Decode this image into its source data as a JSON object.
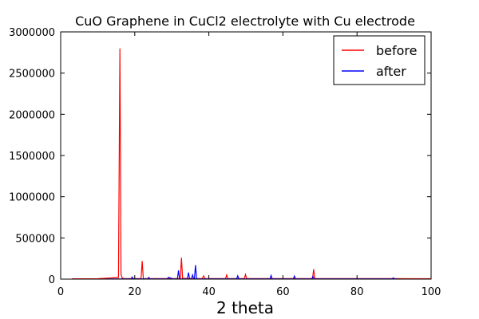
{
  "chart_data": {
    "type": "line",
    "title": "CuO Graphene in CuCl2 electrolyte with Cu electrode",
    "xlabel": "2 theta",
    "ylabel": "",
    "xlim": [
      0,
      100
    ],
    "ylim": [
      0,
      3000000
    ],
    "xticks": [
      "0",
      "20",
      "40",
      "60",
      "80",
      "100"
    ],
    "yticks": [
      "0",
      "500000",
      "1000000",
      "1500000",
      "2000000",
      "2500000",
      "3000000"
    ],
    "xtick_values": [
      0,
      20,
      40,
      60,
      80,
      100
    ],
    "ytick_values": [
      0,
      500000,
      1000000,
      1500000,
      2000000,
      2500000,
      3000000
    ],
    "grid": false,
    "legend_position": "top-right",
    "series": [
      {
        "name": "before",
        "color": "#ff0000",
        "x": [
          3,
          10,
          15.6,
          16.0,
          16.3,
          16.6,
          17.0,
          20,
          21.7,
          22.0,
          22.3,
          25,
          30,
          32.3,
          32.6,
          32.9,
          35,
          38.2,
          38.6,
          38.9,
          40,
          44.5,
          44.8,
          45.1,
          48,
          49.6,
          49.9,
          50.2,
          55,
          60,
          68.0,
          68.3,
          68.6,
          75,
          80,
          90,
          100
        ],
        "y": [
          4000,
          5000,
          20000,
          2800000,
          60000,
          15000,
          6000,
          6000,
          6000,
          220000,
          8000,
          6000,
          6000,
          6000,
          260000,
          10000,
          6000,
          6000,
          40000,
          8000,
          6000,
          6000,
          50000,
          6000,
          6000,
          6000,
          55000,
          6000,
          6000,
          6000,
          6000,
          120000,
          6000,
          6000,
          6000,
          6000,
          5000
        ]
      },
      {
        "name": "after",
        "color": "#0000ff",
        "x": [
          12,
          18,
          19.0,
          19.3,
          19.6,
          23.5,
          23.8,
          24.1,
          28,
          28.8,
          29.1,
          30.3,
          31.5,
          31.8,
          32.1,
          33,
          34.2,
          34.5,
          34.8,
          35.3,
          35.6,
          35.9,
          36.1,
          36.4,
          36.7,
          37,
          40,
          45,
          47.5,
          47.8,
          48.1,
          52,
          56.5,
          56.8,
          57.1,
          62,
          62.8,
          63.1,
          63.4,
          66,
          67.8,
          68.1,
          68.4,
          72,
          80,
          89.5,
          89.8,
          90.1,
          91
        ],
        "y": [
          2000,
          3000,
          3000,
          25000,
          3000,
          3000,
          20000,
          3000,
          3000,
          3000,
          22000,
          3000,
          3000,
          105000,
          3000,
          3000,
          3000,
          80000,
          3000,
          3000,
          50000,
          3000,
          3000,
          170000,
          3000,
          3000,
          3000,
          3000,
          3000,
          40000,
          3000,
          3000,
          3000,
          45000,
          3000,
          3000,
          3000,
          38000,
          3000,
          3000,
          3000,
          35000,
          3000,
          3000,
          3000,
          3000,
          15000,
          3000,
          2000
        ]
      }
    ]
  }
}
